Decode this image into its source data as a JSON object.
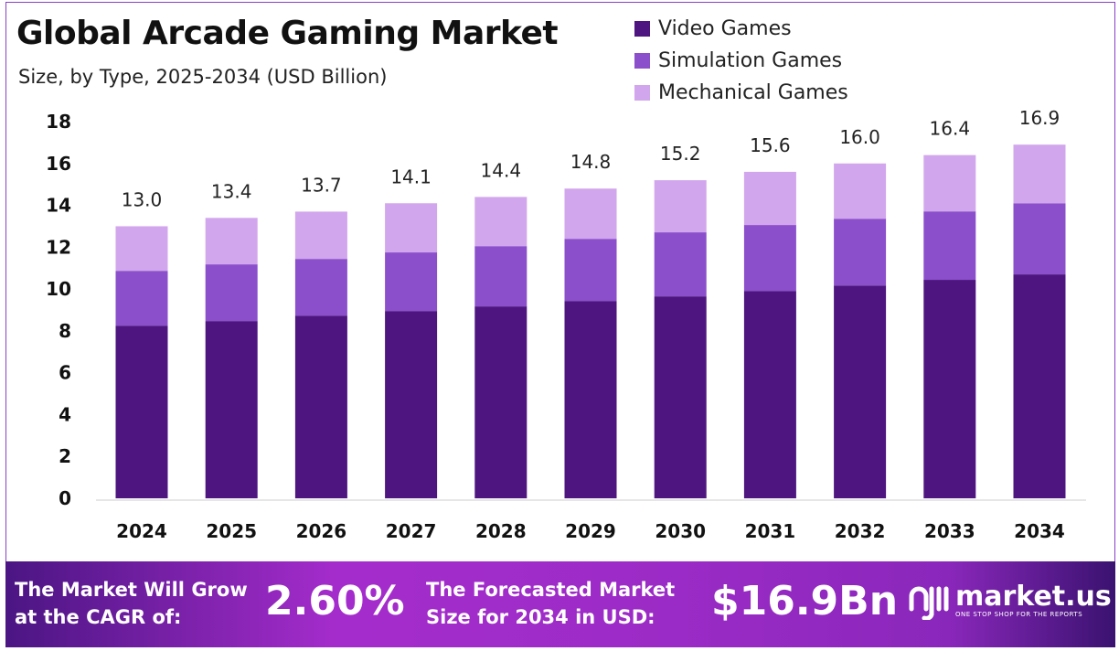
{
  "chart_data": {
    "type": "bar",
    "stacked": true,
    "title": "Global Arcade Gaming Market",
    "subtitle": "Size, by Type, 2025-2034 (USD Billion)",
    "categories": [
      "2024",
      "2025",
      "2026",
      "2027",
      "2028",
      "2029",
      "2030",
      "2031",
      "2032",
      "2033",
      "2034"
    ],
    "series": [
      {
        "name": "Video Games",
        "color": "#4e1580",
        "values": [
          8.25,
          8.47,
          8.73,
          8.95,
          9.17,
          9.43,
          9.65,
          9.91,
          10.17,
          10.44,
          10.7
        ]
      },
      {
        "name": "Simulation Games",
        "color": "#8b4fcc",
        "values": [
          2.62,
          2.71,
          2.71,
          2.8,
          2.88,
          2.97,
          3.06,
          3.15,
          3.19,
          3.27,
          3.4
        ]
      },
      {
        "name": "Mechanical Games",
        "color": "#d2a6ec",
        "values": [
          2.13,
          2.22,
          2.26,
          2.35,
          2.35,
          2.4,
          2.49,
          2.54,
          2.64,
          2.69,
          2.8
        ]
      }
    ],
    "totals": [
      "13.0",
      "13.4",
      "13.7",
      "14.1",
      "14.4",
      "14.8",
      "15.2",
      "15.6",
      "16.0",
      "16.4",
      "16.9"
    ],
    "ylim": [
      0,
      18
    ],
    "yticks": [
      "0",
      "2",
      "4",
      "6",
      "8",
      "10",
      "12",
      "14",
      "16",
      "18"
    ],
    "grid": false,
    "legend_position": "top-right"
  },
  "footer": {
    "cagr_text_1": "The Market Will Grow",
    "cagr_text_2": "at the CAGR of:",
    "cagr_value": "2.60%",
    "forecast_text_1": "The Forecasted Market",
    "forecast_text_2": "Size for 2034 in USD:",
    "forecast_value": "$16.9Bn",
    "brand": "market.us",
    "tagline": "ONE STOP SHOP FOR THE REPORTS"
  }
}
